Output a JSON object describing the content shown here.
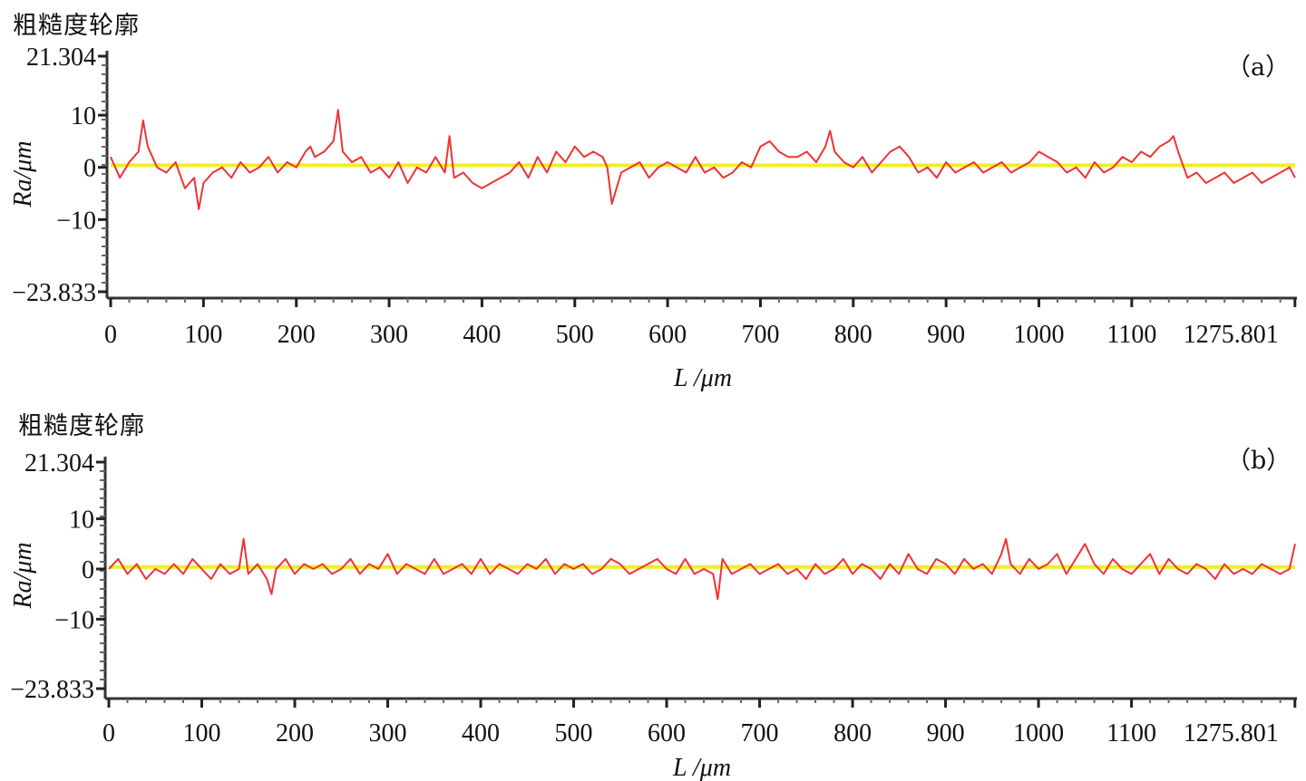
{
  "chart_data": [
    {
      "type": "line",
      "caption": "粗糙度轮廓",
      "panel_label": "（a）",
      "xlabel": "L /μm",
      "ylabel": "Ra/μm",
      "xlim": [
        0,
        1276
      ],
      "ylim": [
        -23.833,
        21.304
      ],
      "xticks": [
        0,
        100,
        200,
        300,
        400,
        500,
        600,
        700,
        800,
        900,
        1000,
        1100,
        1275.801
      ],
      "x_tick_labels": [
        "0",
        "100",
        "200",
        "300",
        "400",
        "500",
        "600",
        "700",
        "800",
        "900",
        "1000",
        "1100",
        "1275.801"
      ],
      "y_tick_labels": [
        "21.304",
        "10",
        "0",
        "-10",
        "-23.833"
      ],
      "series": [
        {
          "role": "profile",
          "color": "#ee3333",
          "x": [
            0,
            10,
            20,
            30,
            35,
            40,
            50,
            60,
            70,
            80,
            90,
            95,
            100,
            110,
            120,
            130,
            140,
            150,
            160,
            170,
            180,
            190,
            200,
            210,
            215,
            220,
            230,
            240,
            245,
            250,
            260,
            270,
            280,
            290,
            300,
            310,
            320,
            330,
            340,
            350,
            360,
            365,
            370,
            380,
            390,
            400,
            410,
            420,
            430,
            440,
            450,
            460,
            470,
            480,
            490,
            500,
            510,
            520,
            530,
            535,
            540,
            550,
            560,
            570,
            580,
            590,
            600,
            610,
            620,
            630,
            640,
            650,
            660,
            670,
            680,
            690,
            700,
            710,
            720,
            730,
            740,
            750,
            760,
            770,
            775,
            780,
            790,
            800,
            810,
            820,
            830,
            840,
            850,
            860,
            870,
            880,
            890,
            900,
            910,
            920,
            930,
            940,
            950,
            960,
            970,
            980,
            990,
            1000,
            1010,
            1020,
            1030,
            1040,
            1050,
            1060,
            1070,
            1080,
            1090,
            1100,
            1110,
            1120,
            1130,
            1140,
            1145,
            1150,
            1160,
            1170,
            1180,
            1190,
            1200,
            1210,
            1220,
            1230,
            1240,
            1250,
            1260,
            1270,
            1276
          ],
          "y": [
            2,
            -2,
            1,
            3,
            9,
            4,
            0,
            -1,
            1,
            -4,
            -2,
            -8,
            -3,
            -1,
            0,
            -2,
            1,
            -1,
            0,
            2,
            -1,
            1,
            0,
            3,
            4,
            2,
            3,
            5,
            11,
            3,
            1,
            2,
            -1,
            0,
            -2,
            1,
            -3,
            0,
            -1,
            2,
            -1,
            6,
            -2,
            -1,
            -3,
            -4,
            -3,
            -2,
            -1,
            1,
            -2,
            2,
            -1,
            3,
            1,
            4,
            2,
            3,
            2,
            0,
            -7,
            -1,
            0,
            1,
            -2,
            0,
            1,
            0,
            -1,
            2,
            -1,
            0,
            -2,
            -1,
            1,
            0,
            4,
            5,
            3,
            2,
            2,
            3,
            1,
            4,
            7,
            3,
            1,
            0,
            2,
            -1,
            1,
            3,
            4,
            2,
            -1,
            0,
            -2,
            1,
            -1,
            0,
            1,
            -1,
            0,
            1,
            -1,
            0,
            1,
            3,
            2,
            1,
            -1,
            0,
            -2,
            1,
            -1,
            0,
            2,
            1,
            3,
            2,
            4,
            5,
            6,
            3,
            -2,
            -1,
            -3,
            -2,
            -1,
            -3,
            -2,
            -1,
            -3,
            -2,
            -1,
            0,
            -2
          ]
        },
        {
          "role": "mean-line",
          "color": "#f2ee22",
          "x": [
            0,
            1276
          ],
          "y": [
            0.4,
            0.4
          ]
        }
      ]
    },
    {
      "type": "line",
      "caption": "粗糙度轮廓",
      "panel_label": "（b）",
      "xlabel": "L /μm",
      "ylabel": "Ra/μm",
      "xlim": [
        0,
        1276
      ],
      "ylim": [
        -23.833,
        21.304
      ],
      "xticks": [
        0,
        100,
        200,
        300,
        400,
        500,
        600,
        700,
        800,
        900,
        1000,
        1100,
        1275.801
      ],
      "x_tick_labels": [
        "0",
        "100",
        "200",
        "300",
        "400",
        "500",
        "600",
        "700",
        "800",
        "900",
        "1000",
        "1100",
        "1275.801"
      ],
      "y_tick_labels": [
        "21.304",
        "10",
        "0",
        "-10",
        "-23.833"
      ],
      "series": [
        {
          "role": "profile",
          "color": "#ee3333",
          "x": [
            0,
            10,
            20,
            30,
            40,
            50,
            60,
            70,
            80,
            90,
            100,
            110,
            120,
            130,
            140,
            145,
            150,
            160,
            170,
            175,
            180,
            190,
            200,
            210,
            220,
            230,
            240,
            250,
            260,
            270,
            280,
            290,
            300,
            310,
            320,
            330,
            340,
            350,
            360,
            370,
            380,
            390,
            400,
            410,
            420,
            430,
            440,
            450,
            460,
            470,
            480,
            490,
            500,
            510,
            520,
            530,
            540,
            550,
            560,
            570,
            580,
            590,
            600,
            610,
            620,
            630,
            640,
            650,
            655,
            660,
            670,
            680,
            690,
            700,
            710,
            720,
            730,
            740,
            750,
            760,
            770,
            780,
            790,
            800,
            810,
            820,
            830,
            840,
            850,
            860,
            870,
            880,
            890,
            900,
            910,
            920,
            930,
            940,
            950,
            960,
            965,
            970,
            980,
            990,
            1000,
            1010,
            1020,
            1030,
            1040,
            1050,
            1060,
            1070,
            1080,
            1090,
            1100,
            1110,
            1120,
            1130,
            1140,
            1150,
            1160,
            1170,
            1180,
            1190,
            1200,
            1210,
            1220,
            1230,
            1240,
            1250,
            1260,
            1270,
            1276
          ],
          "y": [
            0,
            2,
            -1,
            1,
            -2,
            0,
            -1,
            1,
            -1,
            2,
            0,
            -2,
            1,
            -1,
            0,
            6,
            -1,
            1,
            -2,
            -5,
            0,
            2,
            -1,
            1,
            0,
            1,
            -1,
            0,
            2,
            -1,
            1,
            0,
            3,
            -1,
            1,
            0,
            -1,
            2,
            -1,
            0,
            1,
            -1,
            2,
            -1,
            1,
            0,
            -1,
            1,
            0,
            2,
            -1,
            1,
            0,
            1,
            -1,
            0,
            2,
            1,
            -1,
            0,
            1,
            2,
            0,
            -1,
            2,
            -1,
            0,
            -1,
            -6,
            2,
            -1,
            0,
            1,
            -1,
            0,
            1,
            -1,
            0,
            -2,
            1,
            -1,
            0,
            2,
            -1,
            1,
            0,
            -2,
            1,
            -1,
            3,
            0,
            -1,
            2,
            1,
            -1,
            2,
            0,
            1,
            -1,
            3,
            6,
            1,
            -1,
            2,
            0,
            1,
            3,
            -1,
            2,
            5,
            1,
            -1,
            2,
            0,
            -1,
            1,
            3,
            -1,
            2,
            0,
            -1,
            1,
            0,
            -2,
            1,
            -1,
            0,
            -1,
            1,
            0,
            -1,
            0,
            5
          ]
        },
        {
          "role": "mean-line",
          "color": "#f2ee22",
          "x": [
            0,
            1276
          ],
          "y": [
            0.4,
            0.4
          ]
        }
      ]
    }
  ]
}
